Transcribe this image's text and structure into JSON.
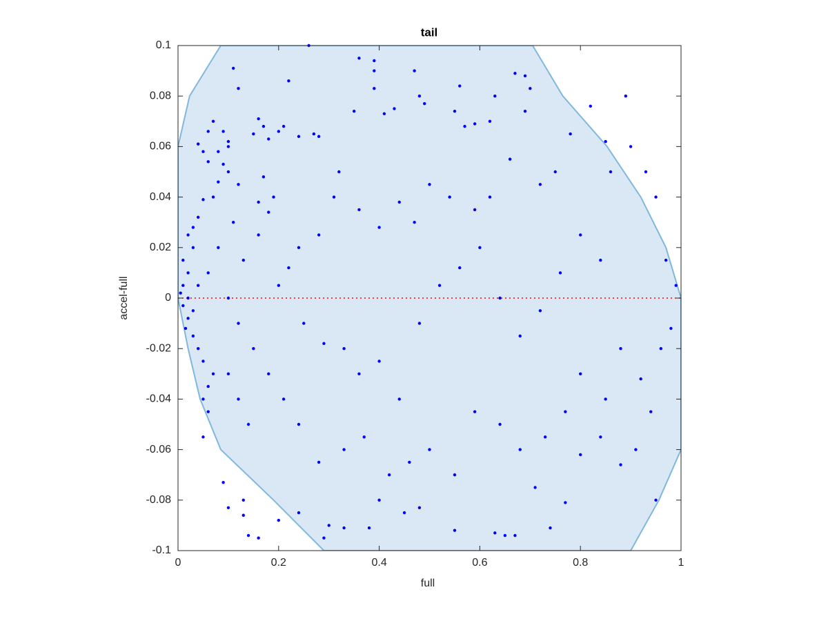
{
  "chart_data": {
    "type": "scatter",
    "title": "tail",
    "xlabel": "full",
    "ylabel": "accel-full",
    "xlim": [
      0,
      1
    ],
    "ylim": [
      -0.1,
      0.1
    ],
    "xticks": [
      0,
      0.2,
      0.4,
      0.6,
      0.8,
      1
    ],
    "yticks": [
      -0.1,
      -0.08,
      -0.06,
      -0.04,
      -0.02,
      0,
      0.02,
      0.04,
      0.06,
      0.08,
      0.1
    ],
    "color": "#0000ff",
    "region": {
      "color": "#d9e8f4",
      "edge_color": "#7fb7dd",
      "x": [
        0,
        0.023,
        0.085,
        0.705,
        0.765,
        0.853,
        0.92,
        0.97,
        1,
        1,
        0.956,
        0.9,
        0.29,
        0.19,
        0.085,
        0.044,
        0.02,
        0
      ],
      "y": [
        0.06,
        0.08,
        0.1,
        0.1,
        0.08,
        0.06,
        0.04,
        0.02,
        0,
        -0.06,
        -0.08,
        -0.1,
        -0.1,
        -0.08,
        -0.06,
        -0.04,
        -0.02,
        0
      ]
    },
    "reference_line": {
      "y": 0,
      "color": "#ff0000"
    },
    "x": [
      0.26,
      0.11,
      0.12,
      0.22,
      0.36,
      0.39,
      0.39,
      0.47,
      0.39,
      0.35,
      0.41,
      0.43,
      0.48,
      0.49,
      0.56,
      0.63,
      0.67,
      0.69,
      0.7,
      0.69,
      0.62,
      0.55,
      0.57,
      0.59,
      0.16,
      0.17,
      0.15,
      0.2,
      0.21,
      0.24,
      0.27,
      0.28,
      0.18,
      0.1,
      0.1,
      0.09,
      0.07,
      0.06,
      0.04,
      0.05,
      0.08,
      0.06,
      0.09,
      0.1,
      0.12,
      0.17,
      0.19,
      0.16,
      0.18,
      0.08,
      0.07,
      0.05,
      0.04,
      0.03,
      0.02,
      0.03,
      0.01,
      0.02,
      0.01,
      0.005,
      0.01,
      0.02,
      0.015,
      0.03,
      0.04,
      0.05,
      0.07,
      0.06,
      0.05,
      0.06,
      0.05,
      0.1,
      0.12,
      0.14,
      0.09,
      0.1,
      0.13,
      0.13,
      0.14,
      0.16,
      0.2,
      0.24,
      0.3,
      0.29,
      0.33,
      0.38,
      0.4,
      0.45,
      0.48,
      0.55,
      0.63,
      0.65,
      0.67,
      0.74,
      0.71,
      0.77,
      0.8,
      0.84,
      0.88,
      0.91,
      0.95,
      0.94,
      0.96,
      0.98,
      0.99,
      0.97,
      0.93,
      0.95,
      0.9,
      0.89,
      0.82,
      0.85,
      0.86,
      0.78,
      0.75,
      0.72,
      0.66,
      0.62,
      0.59,
      0.54,
      0.5,
      0.47,
      0.44,
      0.4,
      0.36,
      0.32,
      0.31,
      0.28,
      0.24,
      0.22,
      0.2,
      0.25,
      0.29,
      0.33,
      0.36,
      0.4,
      0.44,
      0.48,
      0.52,
      0.56,
      0.6,
      0.64,
      0.68,
      0.72,
      0.76,
      0.8,
      0.84,
      0.88,
      0.92,
      0.85,
      0.8,
      0.77,
      0.73,
      0.68,
      0.64,
      0.59,
      0.55,
      0.5,
      0.46,
      0.42,
      0.37,
      0.33,
      0.28,
      0.24,
      0.21,
      0.18,
      0.15,
      0.12,
      0.1,
      0.13,
      0.16,
      0.11,
      0.08,
      0.06,
      0.04,
      0.03,
      0.02
    ],
    "y": [
      0.1,
      0.091,
      0.083,
      0.086,
      0.095,
      0.094,
      0.09,
      0.09,
      0.083,
      0.074,
      0.073,
      0.075,
      0.08,
      0.077,
      0.084,
      0.08,
      0.089,
      0.088,
      0.083,
      0.074,
      0.07,
      0.074,
      0.068,
      0.069,
      0.071,
      0.068,
      0.065,
      0.066,
      0.068,
      0.064,
      0.065,
      0.064,
      0.063,
      0.062,
      0.06,
      0.066,
      0.07,
      0.066,
      0.061,
      0.058,
      0.058,
      0.054,
      0.053,
      0.05,
      0.045,
      0.048,
      0.04,
      0.038,
      0.034,
      0.046,
      0.04,
      0.039,
      0.032,
      0.028,
      0.025,
      0.02,
      0.015,
      0.01,
      0.005,
      0.002,
      -0.003,
      -0.008,
      -0.012,
      -0.015,
      -0.02,
      -0.025,
      -0.03,
      -0.035,
      -0.04,
      -0.045,
      -0.055,
      -0.03,
      -0.04,
      -0.05,
      -0.073,
      -0.083,
      -0.08,
      -0.086,
      -0.094,
      -0.095,
      -0.088,
      -0.085,
      -0.09,
      -0.095,
      -0.091,
      -0.091,
      -0.08,
      -0.085,
      -0.083,
      -0.092,
      -0.093,
      -0.094,
      -0.094,
      -0.091,
      -0.075,
      -0.081,
      -0.062,
      -0.055,
      -0.066,
      -0.06,
      -0.08,
      -0.045,
      -0.02,
      -0.012,
      0.005,
      0.015,
      0.05,
      0.04,
      0.06,
      0.08,
      0.076,
      0.062,
      0.05,
      0.065,
      0.05,
      0.045,
      0.055,
      0.04,
      0.035,
      0.04,
      0.045,
      0.03,
      0.038,
      0.028,
      0.035,
      0.05,
      0.04,
      0.025,
      0.02,
      0.012,
      0.005,
      -0.01,
      -0.018,
      -0.02,
      -0.03,
      -0.025,
      -0.04,
      -0.01,
      0.005,
      0.012,
      0.02,
      0,
      -0.015,
      -0.005,
      0.01,
      0.025,
      0.015,
      -0.02,
      -0.032,
      -0.04,
      -0.03,
      -0.045,
      -0.055,
      -0.06,
      -0.05,
      -0.045,
      -0.07,
      -0.06,
      -0.065,
      -0.07,
      -0.055,
      -0.06,
      -0.065,
      -0.05,
      -0.04,
      -0.03,
      -0.02,
      -0.01,
      0,
      0.015,
      0.025,
      0.03,
      0.02,
      0.01,
      0.005,
      -0.005,
      0
    ]
  }
}
